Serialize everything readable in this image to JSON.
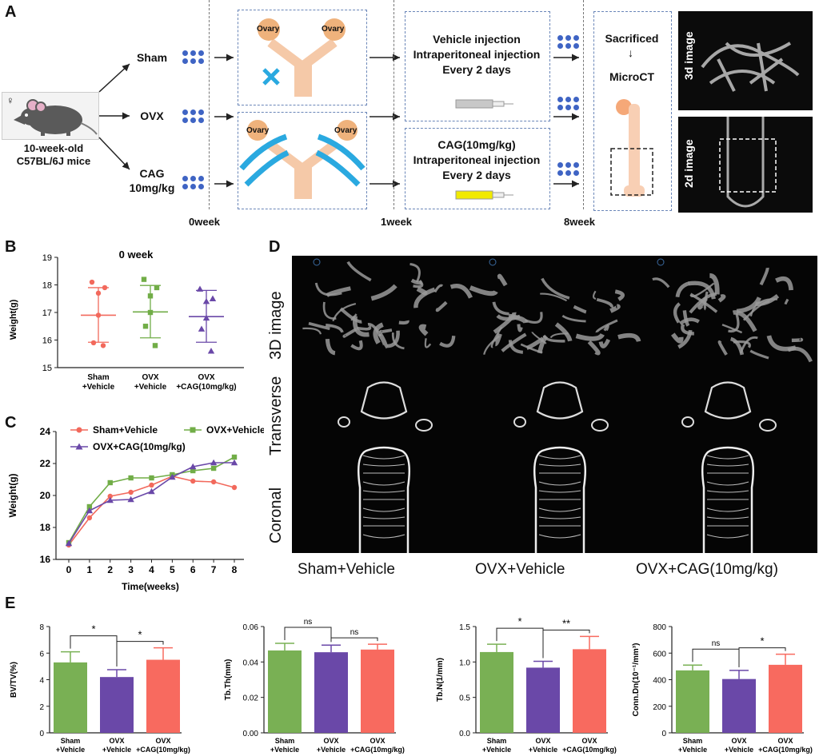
{
  "panels": {
    "a": "A",
    "b": "B",
    "c": "C",
    "d": "D",
    "e": "E"
  },
  "panel_a": {
    "mouse_label": "10-week-old\nC57BL/6J mice",
    "groups": [
      "Sham",
      "OVX",
      "CAG\n10mg/kg"
    ],
    "ovary_label": "Ovary",
    "vehicle_text": "Vehicle injection\nIntraperitoneal injection\nEvery 2 days",
    "cag_text": "CAG(10mg/kg)\nIntraperitoneal injection\nEvery 2 days",
    "sacrificed": "Sacrificed",
    "microct": "MicroCT",
    "weeks": [
      "0week",
      "1week",
      "8week"
    ],
    "image_3d": "3d image",
    "image_2d": "2d image",
    "female_symbol": "♀"
  },
  "panel_d": {
    "row_labels": [
      "3D image",
      "Transverse",
      "Coronal"
    ],
    "col_labels": [
      "Sham+Vehicle",
      "OVX+Vehicle",
      "OVX+CAG(10mg/kg)"
    ]
  },
  "chart_data": [
    {
      "id": "B",
      "type": "scatter",
      "title": "0 week",
      "ylabel": "Weight(g)",
      "ylim": [
        15,
        19
      ],
      "yticks": [
        15,
        16,
        17,
        18,
        19
      ],
      "categories": [
        "Sham\n+Vehicle",
        "OVX\n+Vehicle",
        "OVX\n+CAG(10mg/kg)"
      ],
      "colors": [
        "#f2695c",
        "#71ad47",
        "#6a48a8"
      ],
      "markers": [
        "circle",
        "square",
        "triangle"
      ],
      "points": [
        [
          18.1,
          17.9,
          17.7,
          16.9,
          15.9,
          15.8
        ],
        [
          18.2,
          17.9,
          17.6,
          17.0,
          16.5,
          15.8
        ],
        [
          17.85,
          17.5,
          17.4,
          16.8,
          16.4,
          15.6
        ]
      ],
      "means": [
        16.9,
        17.02,
        16.85
      ],
      "sd_upper": [
        17.9,
        17.98,
        17.8
      ],
      "sd_lower": [
        15.92,
        16.08,
        15.92
      ]
    },
    {
      "id": "C",
      "type": "line",
      "xlabel": "Time(weeks)",
      "ylabel": "Weight(g)",
      "ylim": [
        16,
        24
      ],
      "x": [
        0,
        1,
        2,
        3,
        4,
        5,
        6,
        7,
        8
      ],
      "yticks": [
        16,
        18,
        20,
        22,
        24
      ],
      "series": [
        {
          "name": "Sham+Vehicle",
          "color": "#f2695c",
          "marker": "circle",
          "values": [
            16.9,
            18.6,
            19.95,
            20.2,
            20.65,
            21.2,
            20.9,
            20.85,
            20.5
          ]
        },
        {
          "name": "OVX+Vehicle",
          "color": "#71ad47",
          "marker": "square",
          "values": [
            17.05,
            19.3,
            20.8,
            21.1,
            21.1,
            21.3,
            21.55,
            21.7,
            22.4
          ]
        },
        {
          "name": "OVX+CAG(10mg/kg)",
          "color": "#6a48a8",
          "marker": "triangle",
          "values": [
            17.0,
            19.05,
            19.7,
            19.75,
            20.25,
            21.15,
            21.8,
            22.05,
            22.05
          ]
        }
      ]
    },
    {
      "id": "E1",
      "type": "bar",
      "ylabel": "BV/TV(%)",
      "ylim": [
        0,
        8
      ],
      "yticks": [
        0,
        2,
        4,
        6,
        8
      ],
      "categories": [
        "Sham\n+Vehicle",
        "OVX\n+Vehicle",
        "OVX\n+CAG(10mg/kg)"
      ],
      "colors": [
        "#79b054",
        "#6a48a8",
        "#f86a5f"
      ],
      "values": [
        5.3,
        4.2,
        5.5
      ],
      "errors": [
        0.8,
        0.55,
        0.9
      ],
      "significance": [
        {
          "pair": [
            0,
            1
          ],
          "label": "*"
        },
        {
          "pair": [
            1,
            2
          ],
          "label": "*"
        }
      ]
    },
    {
      "id": "E2",
      "type": "bar",
      "ylabel": "Tb.Th(mm)",
      "ylim": [
        0,
        0.06
      ],
      "yticks": [
        "0.00",
        "0.02",
        "0.04",
        "0.06"
      ],
      "categories": [
        "Sham\n+Vehicle",
        "OVX\n+Vehicle",
        "OVX\n+CAG(10mg/kg)"
      ],
      "colors": [
        "#79b054",
        "#6a48a8",
        "#f86a5f"
      ],
      "values": [
        0.0465,
        0.0455,
        0.047
      ],
      "errors": [
        0.004,
        0.004,
        0.003
      ],
      "significance": [
        {
          "pair": [
            0,
            1
          ],
          "label": "ns"
        },
        {
          "pair": [
            1,
            2
          ],
          "label": "ns"
        }
      ]
    },
    {
      "id": "E3",
      "type": "bar",
      "ylabel": "Tb.N(1/mm)",
      "ylim": [
        0,
        1.5
      ],
      "yticks": [
        "0.0",
        "0.5",
        "1.0",
        "1.5"
      ],
      "categories": [
        "Sham\n+Vehicle",
        "OVX\n+Vehicle",
        "OVX\n+CAG(10mg/kg)"
      ],
      "colors": [
        "#79b054",
        "#6a48a8",
        "#f86a5f"
      ],
      "values": [
        1.14,
        0.92,
        1.18
      ],
      "errors": [
        0.11,
        0.09,
        0.18
      ],
      "significance": [
        {
          "pair": [
            0,
            1
          ],
          "label": "*"
        },
        {
          "pair": [
            1,
            2
          ],
          "label": "**"
        }
      ]
    },
    {
      "id": "E4",
      "type": "bar",
      "ylabel": "Conn.Dn(10⁻¹/mm³)",
      "ylim": [
        0,
        800
      ],
      "yticks": [
        0,
        200,
        400,
        600,
        800
      ],
      "categories": [
        "Sham\n+Vehicle",
        "OVX\n+Vehicle",
        "OVX\n+CAG(10mg/kg)"
      ],
      "colors": [
        "#79b054",
        "#6a48a8",
        "#f86a5f"
      ],
      "values": [
        470,
        405,
        512
      ],
      "errors": [
        40,
        65,
        80
      ],
      "significance": [
        {
          "pair": [
            0,
            1
          ],
          "label": "ns"
        },
        {
          "pair": [
            1,
            2
          ],
          "label": "*"
        }
      ]
    }
  ]
}
